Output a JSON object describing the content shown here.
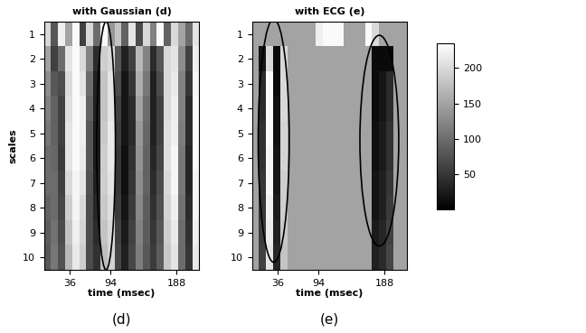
{
  "chart_data": [
    {
      "type": "heatmap",
      "title": "with Gaussian (d)",
      "caption": "(d)",
      "x_label": "time (msec)",
      "y_label": "scales",
      "xlim": [
        0,
        220
      ],
      "xticks": [
        36,
        94,
        188
      ],
      "ylim": [
        10.5,
        0.5
      ],
      "yticks": [
        1,
        2,
        3,
        4,
        5,
        6,
        7,
        8,
        9,
        10
      ],
      "x_edges": [
        0,
        10,
        20,
        30,
        40,
        50,
        60,
        70,
        80,
        90,
        100,
        110,
        120,
        130,
        140,
        150,
        160,
        170,
        180,
        190,
        200,
        210,
        220
      ],
      "y_edges": [
        0.5,
        1.5,
        2.5,
        3.5,
        4.5,
        5.5,
        6.5,
        7.5,
        8.5,
        9.5,
        10.5
      ],
      "color_range": [
        0,
        235
      ],
      "cells": [
        [
          200,
          80,
          220,
          150,
          230,
          60,
          200,
          100,
          230,
          140,
          180,
          90,
          210,
          70,
          200,
          120,
          230,
          90,
          200,
          150,
          100,
          210
        ],
        [
          150,
          60,
          100,
          210,
          230,
          200,
          120,
          40,
          190,
          200,
          80,
          30,
          60,
          170,
          120,
          40,
          80,
          200,
          210,
          130,
          60,
          220
        ],
        [
          130,
          80,
          70,
          200,
          230,
          210,
          100,
          30,
          180,
          210,
          70,
          20,
          50,
          160,
          110,
          30,
          70,
          200,
          215,
          120,
          50,
          225
        ],
        [
          120,
          90,
          60,
          205,
          230,
          220,
          90,
          30,
          180,
          210,
          60,
          20,
          40,
          150,
          100,
          30,
          60,
          200,
          220,
          120,
          40,
          230
        ],
        [
          110,
          90,
          60,
          210,
          230,
          220,
          80,
          25,
          185,
          215,
          55,
          20,
          40,
          140,
          95,
          30,
          60,
          205,
          220,
          115,
          40,
          230
        ],
        [
          100,
          95,
          55,
          210,
          230,
          215,
          80,
          25,
          190,
          215,
          50,
          15,
          45,
          135,
          90,
          35,
          65,
          205,
          225,
          110,
          35,
          230
        ],
        [
          100,
          100,
          60,
          200,
          225,
          210,
          75,
          30,
          190,
          210,
          50,
          15,
          50,
          130,
          90,
          40,
          70,
          200,
          225,
          110,
          35,
          225
        ],
        [
          90,
          100,
          65,
          190,
          225,
          200,
          70,
          35,
          185,
          205,
          55,
          20,
          55,
          125,
          85,
          45,
          75,
          195,
          220,
          105,
          40,
          225
        ],
        [
          85,
          105,
          70,
          180,
          220,
          195,
          70,
          40,
          180,
          200,
          60,
          25,
          60,
          120,
          85,
          50,
          80,
          190,
          215,
          100,
          45,
          220
        ],
        [
          80,
          110,
          75,
          170,
          215,
          190,
          70,
          45,
          175,
          195,
          65,
          30,
          65,
          115,
          80,
          55,
          85,
          185,
          210,
          100,
          50,
          215
        ]
      ]
    },
    {
      "type": "heatmap",
      "title": "with ECG (e)",
      "caption": "(e)",
      "x_label": "time (msec)",
      "xlim": [
        0,
        220
      ],
      "xticks": [
        36,
        94,
        188
      ],
      "ylim": [
        10.5,
        0.5
      ],
      "yticks": [
        1,
        2,
        3,
        4,
        5,
        6,
        7,
        8,
        9,
        10
      ],
      "x_edges": [
        0,
        10,
        20,
        30,
        40,
        50,
        60,
        70,
        80,
        90,
        100,
        110,
        120,
        130,
        140,
        150,
        160,
        170,
        180,
        190,
        200,
        210,
        220
      ],
      "y_edges": [
        0.5,
        1.5,
        2.5,
        3.5,
        4.5,
        5.5,
        6.5,
        7.5,
        8.5,
        9.5,
        10.5
      ],
      "color_range": [
        0,
        235
      ],
      "colorbar": {
        "range": [
          0,
          235
        ],
        "ticks": [
          50,
          100,
          150,
          200
        ]
      },
      "cells": [
        [
          150,
          150,
          150,
          150,
          150,
          150,
          150,
          150,
          150,
          220,
          230,
          230,
          230,
          150,
          150,
          150,
          230,
          200,
          150,
          150,
          150,
          150
        ],
        [
          150,
          20,
          200,
          10,
          200,
          150,
          150,
          150,
          150,
          150,
          150,
          150,
          150,
          150,
          150,
          150,
          150,
          10,
          10,
          10,
          150,
          150
        ],
        [
          150,
          40,
          230,
          10,
          200,
          150,
          150,
          150,
          150,
          150,
          150,
          150,
          150,
          150,
          150,
          150,
          150,
          10,
          20,
          40,
          150,
          150
        ],
        [
          150,
          40,
          230,
          15,
          200,
          150,
          150,
          150,
          150,
          150,
          150,
          150,
          150,
          150,
          150,
          150,
          150,
          10,
          20,
          40,
          150,
          150
        ],
        [
          150,
          45,
          230,
          15,
          195,
          150,
          150,
          150,
          150,
          150,
          150,
          150,
          150,
          150,
          150,
          150,
          150,
          15,
          25,
          45,
          150,
          150
        ],
        [
          150,
          45,
          225,
          20,
          195,
          150,
          150,
          150,
          150,
          150,
          150,
          150,
          150,
          150,
          150,
          150,
          150,
          15,
          25,
          45,
          150,
          150
        ],
        [
          150,
          50,
          225,
          20,
          190,
          150,
          150,
          150,
          150,
          150,
          150,
          150,
          150,
          150,
          150,
          150,
          150,
          20,
          30,
          50,
          150,
          150
        ],
        [
          150,
          50,
          220,
          25,
          190,
          150,
          150,
          150,
          150,
          150,
          150,
          150,
          150,
          150,
          150,
          150,
          150,
          20,
          30,
          55,
          150,
          150
        ],
        [
          150,
          55,
          215,
          30,
          185,
          150,
          150,
          150,
          150,
          150,
          150,
          150,
          150,
          150,
          150,
          150,
          150,
          25,
          35,
          60,
          150,
          150
        ],
        [
          150,
          60,
          210,
          35,
          180,
          150,
          150,
          150,
          150,
          150,
          150,
          150,
          150,
          150,
          150,
          150,
          150,
          30,
          40,
          65,
          150,
          150
        ]
      ]
    }
  ]
}
